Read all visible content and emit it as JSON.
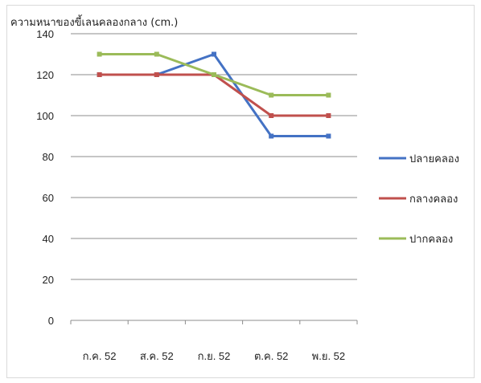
{
  "chart_data": {
    "type": "line",
    "title": "ความหนาของขี้เลนคลองกลาง (cm.)",
    "categories": [
      "ก.ค. 52",
      "ส.ค. 52",
      "ก.ย. 52",
      "ต.ค. 52",
      "พ.ย. 52"
    ],
    "ylim": [
      0,
      140
    ],
    "yticks": [
      0,
      20,
      40,
      60,
      80,
      100,
      120,
      140
    ],
    "grid": true,
    "legend_position": "right",
    "series": [
      {
        "name": "ปลายคลอง",
        "color": "#4472c4",
        "values": [
          120,
          120,
          130,
          90,
          90
        ]
      },
      {
        "name": "กลางคลอง",
        "color": "#c0504d",
        "values": [
          120,
          120,
          120,
          100,
          100
        ]
      },
      {
        "name": "ปากคลอง",
        "color": "#9bbb59",
        "values": [
          130,
          130,
          120,
          110,
          110
        ]
      }
    ]
  }
}
